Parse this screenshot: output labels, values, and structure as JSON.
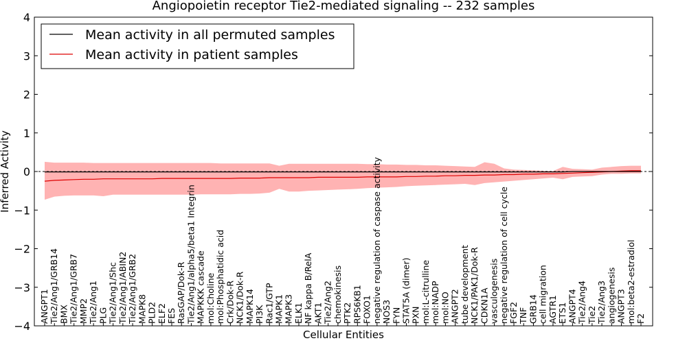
{
  "chart_data": {
    "type": "line",
    "title": "Angiopoietin receptor Tie2-mediated signaling -- 232 samples",
    "xlabel": "Cellular Entities",
    "ylabel": "Inferred Activity",
    "ylim": [
      -4,
      4
    ],
    "yticks": [
      -4,
      -3,
      -2,
      -1,
      0,
      1,
      2,
      3,
      4
    ],
    "ytick_labels": [
      "−4",
      "−3",
      "−2",
      "−1",
      "0",
      "1",
      "2",
      "3",
      "4"
    ],
    "legend": {
      "placement": "top-left",
      "entries": [
        {
          "label": "Mean activity in all permuted samples",
          "color": "#000000"
        },
        {
          "label": "Mean activity in patient samples",
          "color": "#dd0000"
        }
      ]
    },
    "band_color": "#ff9999",
    "reference_line": 0,
    "categories": [
      "ANGPT1",
      "Tie2/Ang1/GRB14",
      "BMX",
      "Tie2/Ang1/GRB7",
      "MMP2",
      "Tie2/Ang1",
      "PLG",
      "Tie2/Ang1/Shc",
      "Tie2/Ang1/ABIN2",
      "Tie2/Ang1/GRB2",
      "MAPK8",
      "PLD2",
      "ELF2",
      "FES",
      "RasGAP/Dok-R",
      "Tie2/Ang1/alpha5/beta1 Integrin",
      "MAPKKK cascade",
      "mol:Choline",
      "mol:Phosphatidic acid",
      "Crk/Dok-R",
      "NCK1/Dok-R",
      "MAPK14",
      "PI3K",
      "Rac1/GTP",
      "MAPK1",
      "MAPK3",
      "ELK1",
      "NF kappa B/RelA",
      "AKT1",
      "Tie2/Ang2",
      "chemokinesis",
      "PTK2",
      "RPS6KB1",
      "FOXO1",
      "negative regulation of caspase activity",
      "NOS3",
      "FYN",
      "STAT5A (dimer)",
      "PXN",
      "mol:L-citrulline",
      "mol:NADP",
      "mol:NO",
      "ANGPT2",
      "tube development",
      "NCK1/PAK1/Dok-R",
      "CDKN1A",
      "vasculogenesis",
      "negative regulation of cell cycle",
      "FGF2",
      "TNF",
      "GRB14",
      "cell migration",
      "AGTR1",
      "ETS1",
      "ANGPT4",
      "Tie2/Ang4",
      "Tie2",
      "Tie2/Ang3",
      "angiogenesis",
      "ANGPT3",
      "mol:beta2-estradiol",
      "F2"
    ],
    "series": [
      {
        "name": "Mean activity in patient samples",
        "values": [
          -0.25,
          -0.23,
          -0.22,
          -0.21,
          -0.2,
          -0.2,
          -0.19,
          -0.19,
          -0.19,
          -0.19,
          -0.19,
          -0.19,
          -0.18,
          -0.18,
          -0.18,
          -0.18,
          -0.18,
          -0.18,
          -0.18,
          -0.18,
          -0.17,
          -0.17,
          -0.17,
          -0.16,
          -0.16,
          -0.16,
          -0.16,
          -0.16,
          -0.15,
          -0.15,
          -0.15,
          -0.15,
          -0.15,
          -0.14,
          -0.14,
          -0.14,
          -0.14,
          -0.13,
          -0.13,
          -0.12,
          -0.12,
          -0.11,
          -0.11,
          -0.1,
          -0.1,
          -0.09,
          -0.09,
          -0.08,
          -0.08,
          -0.07,
          -0.07,
          -0.06,
          -0.06,
          -0.05,
          -0.04,
          -0.03,
          -0.02,
          -0.01,
          0.0,
          0.01,
          0.02,
          0.02
        ]
      },
      {
        "name": "Mean activity in all permuted samples",
        "values": [
          -0.01,
          -0.01,
          -0.01,
          -0.01,
          -0.01,
          -0.01,
          -0.01,
          -0.01,
          -0.01,
          -0.01,
          -0.01,
          -0.01,
          -0.01,
          -0.01,
          -0.01,
          -0.01,
          -0.01,
          -0.01,
          -0.01,
          -0.01,
          -0.01,
          -0.01,
          -0.01,
          -0.01,
          -0.01,
          -0.01,
          -0.01,
          -0.01,
          -0.01,
          -0.01,
          -0.01,
          -0.01,
          -0.01,
          -0.01,
          -0.01,
          -0.01,
          -0.01,
          -0.01,
          -0.01,
          -0.01,
          -0.01,
          -0.01,
          -0.01,
          -0.01,
          -0.01,
          -0.01,
          -0.01,
          -0.01,
          -0.01,
          -0.01,
          -0.01,
          -0.01,
          -0.01,
          -0.01,
          0.0,
          0.0,
          0.0,
          0.0,
          0.0,
          0.0,
          0.0,
          0.0
        ]
      }
    ],
    "band": {
      "upper": [
        0.25,
        0.23,
        0.23,
        0.23,
        0.23,
        0.22,
        0.22,
        0.22,
        0.22,
        0.22,
        0.22,
        0.22,
        0.22,
        0.22,
        0.22,
        0.22,
        0.22,
        0.22,
        0.21,
        0.21,
        0.21,
        0.21,
        0.21,
        0.21,
        0.15,
        0.2,
        0.2,
        0.2,
        0.2,
        0.2,
        0.2,
        0.2,
        0.2,
        0.19,
        0.19,
        0.18,
        0.18,
        0.17,
        0.17,
        0.16,
        0.16,
        0.15,
        0.14,
        0.13,
        0.12,
        0.24,
        0.2,
        0.08,
        0.05,
        0.04,
        0.03,
        0.02,
        0.01,
        0.12,
        0.07,
        0.06,
        0.05,
        0.1,
        0.12,
        0.14,
        0.15,
        0.15
      ],
      "lower": [
        -0.73,
        -0.65,
        -0.63,
        -0.62,
        -0.62,
        -0.62,
        -0.64,
        -0.6,
        -0.6,
        -0.6,
        -0.6,
        -0.6,
        -0.6,
        -0.6,
        -0.6,
        -0.6,
        -0.59,
        -0.59,
        -0.59,
        -0.59,
        -0.58,
        -0.58,
        -0.57,
        -0.55,
        -0.45,
        -0.52,
        -0.52,
        -0.5,
        -0.49,
        -0.48,
        -0.47,
        -0.46,
        -0.45,
        -0.43,
        -0.42,
        -0.41,
        -0.4,
        -0.38,
        -0.37,
        -0.36,
        -0.35,
        -0.34,
        -0.33,
        -0.32,
        -0.35,
        -0.3,
        -0.28,
        -0.26,
        -0.24,
        -0.22,
        -0.2,
        -0.18,
        -0.16,
        -0.2,
        -0.14,
        -0.13,
        -0.12,
        -0.08,
        -0.06,
        -0.06,
        -0.05,
        -0.05
      ]
    }
  }
}
